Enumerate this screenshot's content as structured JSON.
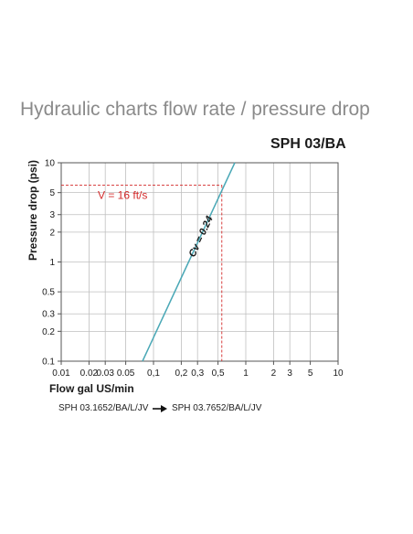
{
  "page": {
    "title": "Hydraulic charts flow rate / pressure drop",
    "model": "SPH 03/BA"
  },
  "footnote": {
    "from": "SPH 03.1652/BA/L/JV",
    "to": "SPH 03.7652/BA/L/JV",
    "arrow_icon": "arrow-right-icon"
  },
  "colors": {
    "series": "#4aa8b6",
    "annotation": "#d42a2a",
    "grid": "#bfbfbf",
    "axis": "#555555",
    "title": "#8a8a8a"
  },
  "chart_data": {
    "type": "line",
    "x_scale": "log",
    "y_scale": "log",
    "xlim": [
      0.01,
      10
    ],
    "ylim": [
      0.1,
      10
    ],
    "xlabel": "Flow gal US/min",
    "ylabel": "Pressure drop (psi)",
    "x_ticks": [
      0.01,
      0.02,
      0.03,
      0.05,
      0.1,
      0.2,
      0.3,
      0.5,
      1,
      2,
      3,
      5,
      10
    ],
    "x_tick_labels": [
      "0.01",
      "0.02",
      "0.03",
      "0.05",
      "0,1",
      "0,2",
      "0,3",
      "0,5",
      "1",
      "2",
      "3",
      "5",
      "10"
    ],
    "y_ticks": [
      0.1,
      0.2,
      0.3,
      0.5,
      1,
      2,
      3,
      5,
      10
    ],
    "y_tick_labels": [
      "0.1",
      "0.2",
      "0.3",
      "0.5",
      "1",
      "2",
      "3",
      "5",
      "10"
    ],
    "grid": true,
    "series": [
      {
        "name": "Cv = 0.24",
        "x": [
          0.076,
          0.24,
          0.76
        ],
        "y": [
          0.1,
          1,
          10
        ]
      }
    ],
    "annotations": [
      {
        "label": "V = 16 ft/s",
        "x": 0.55,
        "y": 5.95
      }
    ]
  }
}
